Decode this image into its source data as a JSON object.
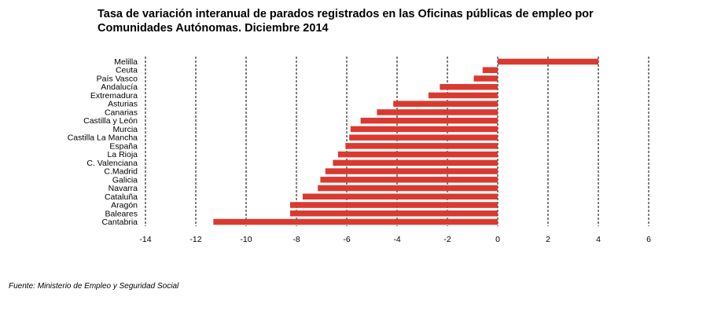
{
  "title_lines": [
    "Tasa de variación interanual de parados registrados en las Oficinas públicas de empleo por",
    "Comunidades Autónomas.  Diciembre 2014"
  ],
  "source": "Fuente: Ministerio de Empleo y Seguridad Social",
  "bar_color": "#d93a30",
  "chart_data": {
    "type": "bar",
    "orientation": "horizontal",
    "title": "Tasa de variación interanual de parados registrados en las Oficinas públicas de empleo por Comunidades Autónomas.  Diciembre 2014",
    "xlabel": "",
    "ylabel": "",
    "xlim": [
      -14,
      6
    ],
    "xticks": [
      -14,
      -12,
      -10,
      -8,
      -6,
      -4,
      -2,
      0,
      2,
      4,
      6
    ],
    "grid": "vertical dashed",
    "categories": [
      "Melilla",
      "Ceuta",
      "País Vasco",
      "Andalucía",
      "Extremadura",
      "Asturias",
      "Canarias",
      "Castilla y León",
      "Murcia",
      "Castilla La Mancha",
      "España",
      "La Rioja",
      "C. Valenciana",
      "C.Madrid",
      "Galicia",
      "Navarra",
      "Cataluña",
      "Aragón",
      "Baleares",
      "Cantabria"
    ],
    "values": [
      4.0,
      -0.6,
      -0.95,
      -2.3,
      -2.75,
      -4.15,
      -4.8,
      -5.45,
      -5.85,
      -5.9,
      -6.05,
      -6.35,
      -6.55,
      -6.85,
      -7.05,
      -7.15,
      -7.75,
      -8.25,
      -8.25,
      -11.3
    ]
  }
}
